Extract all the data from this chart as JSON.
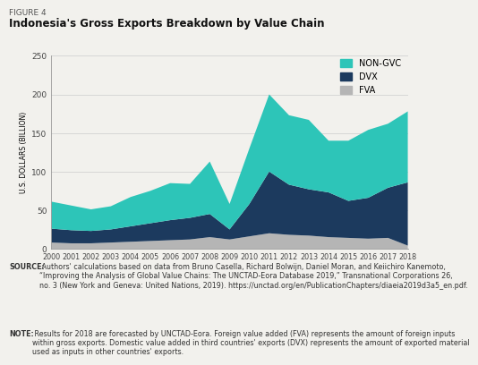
{
  "years": [
    2000,
    2001,
    2002,
    2003,
    2004,
    2005,
    2006,
    2007,
    2008,
    2009,
    2010,
    2011,
    2012,
    2013,
    2014,
    2015,
    2016,
    2017,
    2018
  ],
  "fva": [
    8,
    7,
    7,
    8,
    9,
    10,
    11,
    12,
    15,
    12,
    16,
    20,
    18,
    17,
    15,
    14,
    13,
    14,
    4
  ],
  "dvx": [
    18,
    17,
    16,
    17,
    20,
    23,
    26,
    28,
    30,
    13,
    42,
    80,
    65,
    60,
    58,
    48,
    53,
    65,
    82
  ],
  "non_gvc": [
    35,
    32,
    28,
    30,
    38,
    42,
    48,
    44,
    68,
    33,
    72,
    100,
    90,
    90,
    67,
    78,
    88,
    83,
    92
  ],
  "color_fva": "#b5b5b5",
  "color_dvx": "#1c3a5e",
  "color_non_gvc": "#2dc5b8",
  "figure_label": "FIGURE 4",
  "title": "Indonesia's Gross Exports Breakdown by Value Chain",
  "ylabel": "U.S. DOLLARS (BILLION)",
  "ylim": [
    0,
    250
  ],
  "yticks": [
    0,
    50,
    100,
    150,
    200,
    250
  ],
  "bg_color": "#f2f1ed",
  "source_bold": "SOURCE:",
  "source_rest": " Authors' calculations based on data from Bruno Casella, Richard Bolwijn, Daniel Moran, and Keiichiro Kanemoto,\n“Improving the Analysis of Global Value Chains: The UNCTAD-Eora Database 2019,” Transnational Corporations 26,\nno. 3 (New York and Geneva: United Nations, 2019). https://unctad.org/en/PublicationChapters/diaeia2019d3a5_en.pdf.",
  "note_bold": "NOTE:",
  "note_rest": " Results for 2018 are forecasted by UNCTAD-Eora. Foreign value added (FVA) represents the amount of foreign inputs\nwithin gross exports. Domestic value added in third countries' exports (DVX) represents the amount of exported material\nused as inputs in other countries' exports."
}
